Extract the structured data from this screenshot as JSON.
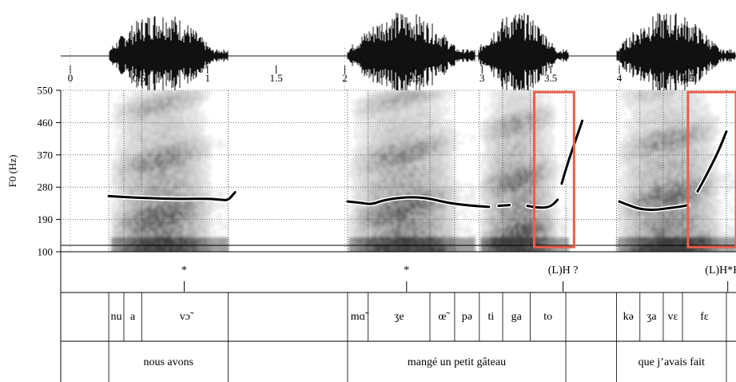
{
  "colors": {
    "waveform": "#111111",
    "spectrogram_dark": "#2a2a2a",
    "pitch_curve": "#000000",
    "highlight_box": "#e8604c",
    "grid": "#555555"
  },
  "time_axis": {
    "min": 0,
    "max": 4.85,
    "ticks": [
      {
        "value": 0,
        "label": "0"
      },
      {
        "value": 0.5,
        "label": "0.5"
      },
      {
        "value": 1,
        "label": "1"
      },
      {
        "value": 1.5,
        "label": "1.5"
      },
      {
        "value": 2,
        "label": "2"
      },
      {
        "value": 2.5,
        "label": "2.5"
      },
      {
        "value": 3,
        "label": "3"
      },
      {
        "value": 3.5,
        "label": "3.5"
      },
      {
        "value": 4,
        "label": "4"
      },
      {
        "value": 4.5,
        "label": "4.5"
      }
    ]
  },
  "f0_axis": {
    "label": "F0 (Hz)",
    "min": 100,
    "max": 550,
    "ticks": [
      {
        "value": 550,
        "label": "550"
      },
      {
        "value": 460,
        "label": "460"
      },
      {
        "value": 370,
        "label": "370"
      },
      {
        "value": 280,
        "label": "280"
      },
      {
        "value": 190,
        "label": "190"
      },
      {
        "value": 100,
        "label": "100"
      }
    ]
  },
  "speech_segments": [
    {
      "start": 0.28,
      "end": 1.15
    },
    {
      "start": 2.02,
      "end": 2.95
    },
    {
      "start": 2.97,
      "end": 3.63
    },
    {
      "start": 3.98,
      "end": 4.85
    }
  ],
  "pitch_segments": [
    {
      "points": [
        [
          0.28,
          255
        ],
        [
          0.5,
          250
        ],
        [
          0.8,
          247
        ],
        [
          1.0,
          248
        ],
        [
          1.1,
          245
        ],
        [
          1.15,
          243
        ],
        [
          1.2,
          266
        ]
      ]
    },
    {
      "points": [
        [
          2.02,
          240
        ],
        [
          2.12,
          236
        ],
        [
          2.2,
          232
        ],
        [
          2.28,
          244
        ],
        [
          2.45,
          253
        ],
        [
          2.6,
          250
        ],
        [
          2.75,
          236
        ],
        [
          2.9,
          229
        ],
        [
          3.05,
          225
        ]
      ]
    },
    {
      "points": [
        [
          3.12,
          228
        ],
        [
          3.2,
          230
        ]
      ]
    },
    {
      "points": [
        [
          3.33,
          228
        ],
        [
          3.42,
          222
        ],
        [
          3.5,
          225
        ],
        [
          3.55,
          245
        ]
      ]
    },
    {
      "points": [
        [
          3.58,
          290
        ],
        [
          3.63,
          355
        ],
        [
          3.69,
          420
        ],
        [
          3.73,
          465
        ]
      ]
    },
    {
      "points": [
        [
          4.0,
          240
        ],
        [
          4.08,
          228
        ],
        [
          4.15,
          219
        ],
        [
          4.25,
          216
        ],
        [
          4.35,
          221
        ],
        [
          4.45,
          226
        ],
        [
          4.5,
          230
        ]
      ]
    },
    {
      "points": [
        [
          4.57,
          268
        ],
        [
          4.63,
          310
        ],
        [
          4.72,
          378
        ],
        [
          4.78,
          435
        ]
      ]
    }
  ],
  "highlights": [
    {
      "start": 3.38,
      "end": 3.67,
      "f0_top": 545,
      "f0_bottom": 113
    },
    {
      "start": 4.5,
      "end": 4.85,
      "f0_top": 545,
      "f0_bottom": 113
    }
  ],
  "tiers": {
    "tones": {
      "boundaries": [],
      "points": [
        {
          "time": 0.83,
          "label": "*"
        },
        {
          "time": 2.45,
          "label": "*"
        },
        {
          "time": 3.59,
          "label": "(L)H  ?"
        },
        {
          "time": 4.79,
          "label": "(L)H*H%"
        }
      ]
    },
    "syllables": {
      "boundaries": [
        0.28,
        0.39,
        0.52,
        1.15,
        2.02,
        2.17,
        2.62,
        2.8,
        2.98,
        3.15,
        3.35,
        3.61,
        3.98,
        4.15,
        4.32,
        4.46,
        4.78
      ],
      "labels": [
        {
          "time": 0.335,
          "text": "nu"
        },
        {
          "time": 0.455,
          "text": "a"
        },
        {
          "time": 0.835,
          "text": "vɔ̃"
        },
        {
          "time": 2.095,
          "text": "mɑ̃"
        },
        {
          "time": 2.395,
          "text": "ʒe"
        },
        {
          "time": 2.71,
          "text": "œ̃"
        },
        {
          "time": 2.89,
          "text": "pə"
        },
        {
          "time": 3.065,
          "text": "ti"
        },
        {
          "time": 3.25,
          "text": "ga"
        },
        {
          "time": 3.48,
          "text": "to"
        },
        {
          "time": 4.065,
          "text": "kə"
        },
        {
          "time": 4.235,
          "text": "ʒa"
        },
        {
          "time": 4.39,
          "text": "vɛ"
        },
        {
          "time": 4.62,
          "text": "fɛ"
        }
      ]
    },
    "words": {
      "boundaries": [
        0.28,
        1.15,
        2.02,
        3.61,
        3.98,
        4.78
      ],
      "labels": [
        {
          "time": 0.715,
          "text": "nous avons"
        },
        {
          "time": 2.815,
          "text": "mangé un petit gâteau"
        },
        {
          "time": 4.38,
          "text": "que j’avais fait"
        }
      ]
    }
  }
}
